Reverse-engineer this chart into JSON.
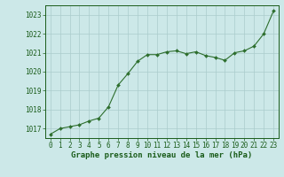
{
  "x": [
    0,
    1,
    2,
    3,
    4,
    5,
    6,
    7,
    8,
    9,
    10,
    11,
    12,
    13,
    14,
    15,
    16,
    17,
    18,
    19,
    20,
    21,
    22,
    23
  ],
  "y": [
    1016.7,
    1017.0,
    1017.1,
    1017.2,
    1017.4,
    1017.55,
    1018.15,
    1019.3,
    1019.9,
    1020.55,
    1020.9,
    1020.9,
    1021.05,
    1021.1,
    1020.95,
    1021.05,
    1020.85,
    1020.75,
    1020.6,
    1021.0,
    1021.1,
    1021.35,
    1022.0,
    1023.2
  ],
  "line_color": "#2d6e2d",
  "marker_color": "#2d6e2d",
  "bg_color": "#cce8e8",
  "grid_color": "#aacccc",
  "axis_label_color": "#1a5c1a",
  "xlabel": "Graphe pression niveau de la mer (hPa)",
  "ylim": [
    1016.5,
    1023.5
  ],
  "yticks": [
    1017,
    1018,
    1019,
    1020,
    1021,
    1022,
    1023
  ],
  "xticks": [
    0,
    1,
    2,
    3,
    4,
    5,
    6,
    7,
    8,
    9,
    10,
    11,
    12,
    13,
    14,
    15,
    16,
    17,
    18,
    19,
    20,
    21,
    22,
    23
  ],
  "tick_fontsize": 5.5,
  "xlabel_fontsize": 6.5
}
